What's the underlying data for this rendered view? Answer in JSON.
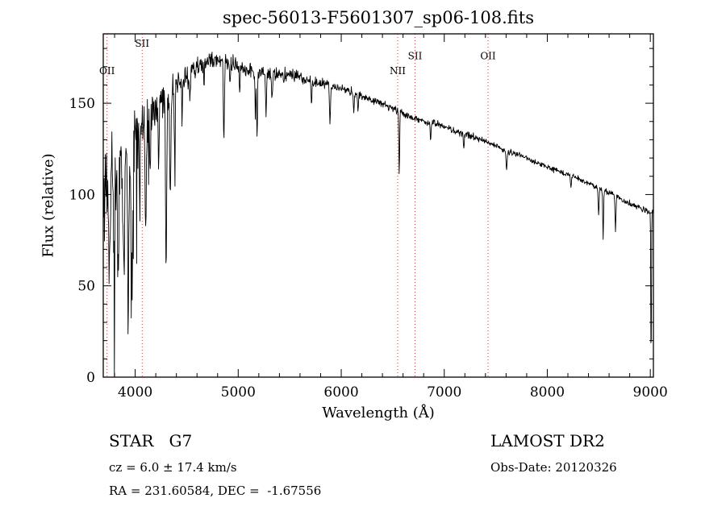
{
  "annotations": {
    "class_label": "STAR   G7",
    "survey": "LAMOST DR2",
    "cz": "cz = 6.0 ± 17.4 km/s",
    "obs_date": "Obs-Date: 20120326",
    "coords": "RA = 231.60584, DEC =  -1.67556"
  },
  "chart_data": {
    "type": "line",
    "title": "spec-56013-F5601307_sp06-108.fits",
    "xlabel": "Wavelength (Å)",
    "ylabel": "Flux (relative)",
    "xlim": [
      3690,
      9030
    ],
    "ylim": [
      0,
      188
    ],
    "x_ticks": [
      4000,
      5000,
      6000,
      7000,
      8000,
      9000
    ],
    "y_ticks": [
      0,
      50,
      100,
      150
    ],
    "x_minor_step": 200,
    "y_minor_step": 10,
    "grid": false,
    "line_color": "#000000",
    "marker_line_color": "#aa4444",
    "marker_lines": [
      {
        "label": "OII",
        "wavelength": 3727,
        "label_flux": 166
      },
      {
        "label": "SII",
        "wavelength": 4068,
        "label_flux": 181
      },
      {
        "label": "NII",
        "wavelength": 6548,
        "label_flux": 166
      },
      {
        "label": "SII",
        "wavelength": 6716,
        "label_flux": 174
      },
      {
        "label": "OII",
        "wavelength": 7425,
        "label_flux": 174
      }
    ],
    "continuum": [
      [
        3690,
        90
      ],
      [
        3700,
        100
      ],
      [
        3720,
        105
      ],
      [
        3750,
        108
      ],
      [
        3800,
        112
      ],
      [
        3850,
        116
      ],
      [
        3900,
        121
      ],
      [
        3950,
        128
      ],
      [
        4000,
        135
      ],
      [
        4100,
        142
      ],
      [
        4200,
        148
      ],
      [
        4300,
        153
      ],
      [
        4400,
        159
      ],
      [
        4500,
        165
      ],
      [
        4600,
        170
      ],
      [
        4700,
        173
      ],
      [
        4800,
        174
      ],
      [
        4900,
        172
      ],
      [
        5000,
        170
      ],
      [
        5100,
        168
      ],
      [
        5200,
        167
      ],
      [
        5300,
        166
      ],
      [
        5400,
        165
      ],
      [
        5500,
        166
      ],
      [
        5600,
        164
      ],
      [
        5700,
        162
      ],
      [
        5800,
        161
      ],
      [
        5900,
        159
      ],
      [
        6000,
        158
      ],
      [
        6100,
        156
      ],
      [
        6200,
        154
      ],
      [
        6300,
        152
      ],
      [
        6400,
        150
      ],
      [
        6500,
        147
      ],
      [
        6600,
        144
      ],
      [
        6700,
        142
      ],
      [
        6800,
        140
      ],
      [
        6900,
        139
      ],
      [
        7000,
        137
      ],
      [
        7200,
        133
      ],
      [
        7400,
        129
      ],
      [
        7600,
        124
      ],
      [
        7800,
        120
      ],
      [
        8000,
        115
      ],
      [
        8200,
        111
      ],
      [
        8400,
        106
      ],
      [
        8600,
        101
      ],
      [
        8800,
        95
      ],
      [
        9000,
        90
      ],
      [
        9030,
        91
      ]
    ],
    "noise_envelope": [
      [
        3690,
        52
      ],
      [
        3740,
        54
      ],
      [
        3790,
        46
      ],
      [
        3850,
        40
      ],
      [
        3920,
        34
      ],
      [
        4000,
        30
      ],
      [
        4100,
        26
      ],
      [
        4200,
        22
      ],
      [
        4300,
        18
      ],
      [
        4400,
        13
      ],
      [
        4500,
        11
      ],
      [
        4650,
        9
      ],
      [
        4850,
        8
      ],
      [
        5100,
        7
      ],
      [
        5400,
        6.5
      ],
      [
        5700,
        5.5
      ],
      [
        6000,
        4.5
      ],
      [
        6400,
        3.8
      ],
      [
        6800,
        3.2
      ],
      [
        7200,
        2.9
      ],
      [
        7600,
        2.6
      ],
      [
        8000,
        2.4
      ],
      [
        8400,
        2.4
      ],
      [
        8800,
        2.8
      ],
      [
        9030,
        3
      ]
    ],
    "absorption_lines": [
      [
        3750,
        55,
        6
      ],
      [
        3797,
        55,
        6
      ],
      [
        3835,
        58,
        6
      ],
      [
        3889,
        60,
        7
      ],
      [
        3933,
        82,
        7
      ],
      [
        3968,
        76,
        7
      ],
      [
        4045,
        32,
        5
      ],
      [
        4101,
        55,
        6
      ],
      [
        4144,
        28,
        5
      ],
      [
        4227,
        34,
        5
      ],
      [
        4300,
        96,
        5
      ],
      [
        4340,
        50,
        6
      ],
      [
        4383,
        30,
        5
      ],
      [
        4455,
        22,
        4
      ],
      [
        4531,
        18,
        4
      ],
      [
        4668,
        16,
        4
      ],
      [
        4861,
        42,
        5
      ],
      [
        4920,
        14,
        4
      ],
      [
        5015,
        14,
        4
      ],
      [
        5167,
        28,
        4
      ],
      [
        5183,
        38,
        4
      ],
      [
        5270,
        24,
        4
      ],
      [
        5328,
        14,
        4
      ],
      [
        5711,
        12,
        4
      ],
      [
        5890,
        18,
        5
      ],
      [
        6122,
        12,
        4
      ],
      [
        6163,
        10,
        4
      ],
      [
        6563,
        33,
        4
      ],
      [
        6867,
        10,
        4
      ],
      [
        7190,
        8,
        4
      ],
      [
        7605,
        10,
        5
      ],
      [
        8230,
        8,
        4
      ],
      [
        8498,
        16,
        4
      ],
      [
        8542,
        27,
        4
      ],
      [
        8662,
        20,
        4
      ],
      [
        9008,
        88,
        3
      ]
    ],
    "spikes": {
      "probability": 0.06,
      "max_wavelength": 4400,
      "strength": 1.9
    },
    "seed": 11,
    "sample_step": 4
  }
}
